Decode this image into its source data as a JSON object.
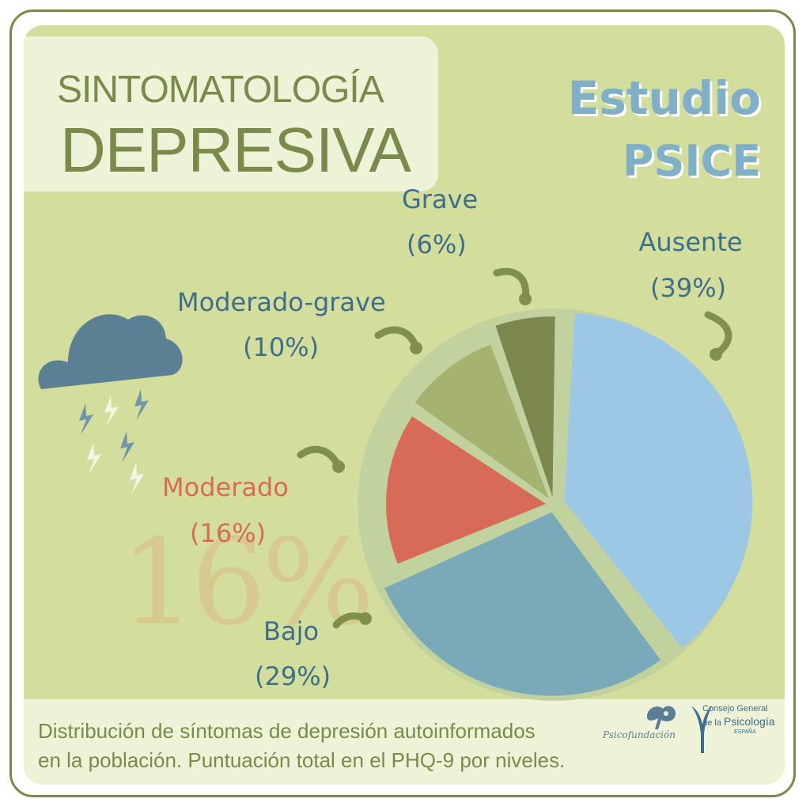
{
  "title": {
    "line1": "SINTOMATOLOGÍA",
    "line2": "DEPRESIVA"
  },
  "brand": {
    "line1": "Estudio",
    "line2": "PSICE"
  },
  "caption": {
    "line1": "Distribución de síntomas de depresión autoinformados",
    "line2": "en la población. Puntuación total en el PHQ-9 por niveles."
  },
  "highlight_value": "16%",
  "logos": {
    "psicofundacion": "Psicofundación",
    "cgp_line1": "Consejo General",
    "cgp_line2_prefix": "de la ",
    "cgp_line2_big": "Psicología",
    "cgp_line3": "ESPAÑA"
  },
  "colors": {
    "ausente": "#9cc8e6",
    "bajo": "#7aa9b9",
    "moderado": "#d86b57",
    "moderado_grave": "#a6b36f",
    "grave": "#7c874d",
    "ring": "#c1d29e",
    "label_blue": "#3d6e8a",
    "label_red": "#d86b57",
    "title_green": "#7a8a4a",
    "cloud": "#5b8093"
  },
  "chart_data": {
    "type": "pie",
    "categories": [
      "Ausente",
      "Bajo",
      "Moderado",
      "Moderado-grave",
      "Grave"
    ],
    "values": [
      39,
      29,
      16,
      10,
      6
    ],
    "value_labels": [
      "(39%)",
      "(29%)",
      "(16%)",
      "(10%)",
      "(6%)"
    ],
    "legend": "none"
  }
}
